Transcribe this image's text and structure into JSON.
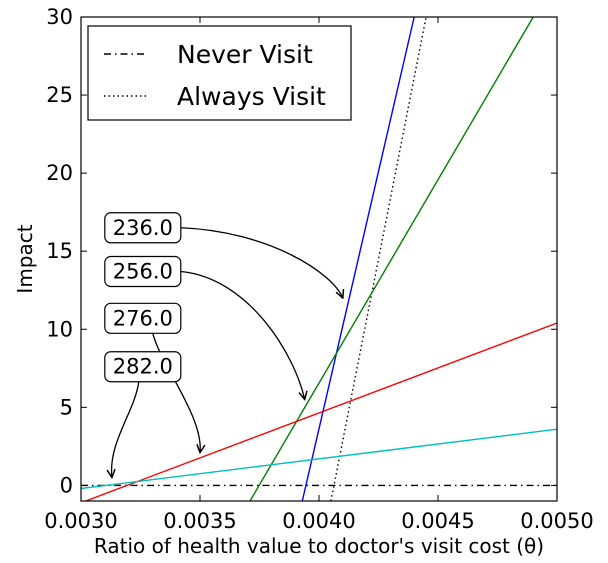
{
  "chart_data": {
    "type": "line",
    "xlabel": "Ratio of health value to doctor's visit cost (θ)",
    "ylabel": "Impact",
    "xlim": [
      0.003,
      0.005
    ],
    "ylim": [
      -1,
      30
    ],
    "x_ticks": [
      "0.0030",
      "0.0035",
      "0.0040",
      "0.0045",
      "0.0050"
    ],
    "y_ticks": [
      "0",
      "5",
      "10",
      "15",
      "20",
      "25",
      "30"
    ],
    "grid": false,
    "legend_position": "top-left",
    "legend": [
      {
        "label": "Never Visit",
        "style": "dashdot",
        "color": "#000000"
      },
      {
        "label": "Always Visit",
        "style": "dotted",
        "color": "#000000"
      }
    ],
    "series": [
      {
        "style": "dashdot",
        "color": "#000000",
        "x": [
          0.003,
          0.005
        ],
        "y": [
          0,
          0
        ]
      },
      {
        "style": "dotted",
        "color": "#000000",
        "x": [
          0.00405,
          0.00445
        ],
        "y": [
          -1,
          30
        ]
      },
      {
        "style": "solid",
        "color": "#0000ff",
        "x": [
          0.00393,
          0.0044
        ],
        "y": [
          -1,
          30
        ]
      },
      {
        "style": "solid",
        "color": "#008000",
        "x": [
          0.00371,
          0.0049
        ],
        "y": [
          -1,
          30
        ]
      },
      {
        "style": "solid",
        "color": "#ff0000",
        "x": [
          0.00302,
          0.005
        ],
        "y": [
          -1,
          10.4
        ]
      },
      {
        "style": "solid",
        "color": "#00bfbf",
        "x": [
          0.003,
          0.005
        ],
        "y": [
          -0.2,
          3.6
        ]
      }
    ],
    "annotations": [
      {
        "text": "236.0",
        "box_at": [
          0.0031,
          16.5
        ],
        "arrow_to": [
          0.0041,
          12.0
        ]
      },
      {
        "text": "256.0",
        "box_at": [
          0.0031,
          13.7
        ],
        "arrow_to": [
          0.00394,
          5.5
        ]
      },
      {
        "text": "276.0",
        "box_at": [
          0.0031,
          10.7
        ],
        "arrow_to": [
          0.0035,
          2.1
        ]
      },
      {
        "text": "282.0",
        "box_at": [
          0.0031,
          7.6
        ],
        "arrow_to": [
          0.00313,
          0.5
        ]
      }
    ]
  }
}
